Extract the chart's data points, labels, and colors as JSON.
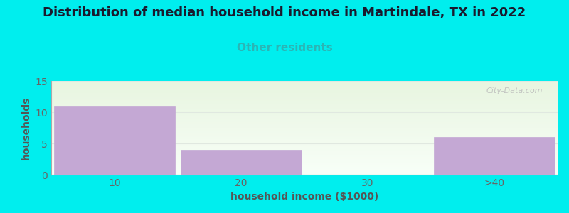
{
  "title": "Distribution of median household income in Martindale, TX in 2022",
  "subtitle": "Other residents",
  "xlabel": "household income ($1000)",
  "ylabel": "households",
  "categories": [
    "10",
    "20",
    "30",
    ">40"
  ],
  "values": [
    11,
    4,
    0,
    6
  ],
  "bar_color": "#c4a8d4",
  "background_color": "#00EEEE",
  "plot_bg_top": "#e8f5e0",
  "plot_bg_bottom": "#f8fff8",
  "ylim": [
    0,
    15
  ],
  "yticks": [
    0,
    5,
    10,
    15
  ],
  "title_fontsize": 13,
  "subtitle_fontsize": 11,
  "subtitle_color": "#2ab5b5",
  "title_color": "#1a1a2e",
  "axis_label_color": "#555555",
  "tick_color": "#666666",
  "watermark": "City-Data.com",
  "bar_width": 0.95,
  "grid_color": "#e0e8e0",
  "spine_color": "#aaaaaa"
}
